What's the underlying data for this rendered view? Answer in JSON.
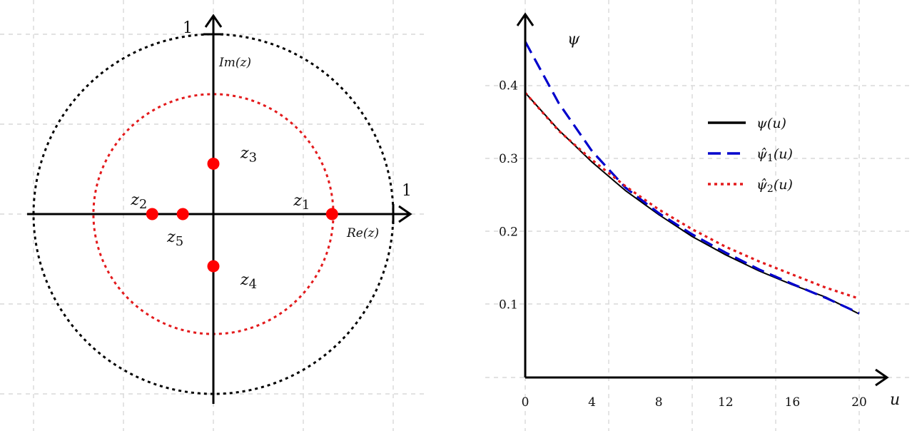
{
  "chart_data": [
    {
      "type": "scatter",
      "subtype": "complex-plane",
      "xlabel": "Re(z)",
      "ylabel": "Im(z)",
      "xlim": [
        -1,
        1
      ],
      "ylim": [
        -1,
        1
      ],
      "grid": true,
      "axis_end_labels": {
        "real": "1",
        "imag": "1"
      },
      "circles": [
        {
          "radius": 1.0,
          "color": "#000000",
          "style": "dotted"
        },
        {
          "radius": 0.667,
          "color": "#e31a1c",
          "style": "dotted"
        }
      ],
      "points": [
        {
          "label": "z1",
          "re": 0.66,
          "im": 0.0
        },
        {
          "label": "z2",
          "re": -0.34,
          "im": 0.0
        },
        {
          "label": "z3",
          "re": 0.0,
          "im": 0.28
        },
        {
          "label": "z4",
          "re": 0.0,
          "im": -0.29
        },
        {
          "label": "z5",
          "re": -0.17,
          "im": 0.0
        }
      ],
      "point_color": "#ff0000"
    },
    {
      "type": "line",
      "ylabel": "ψ",
      "xlabel": "u",
      "xlim": [
        0,
        21
      ],
      "ylim": [
        0,
        0.48
      ],
      "xticks": [
        "0",
        "4",
        "8",
        "12",
        "16",
        "20"
      ],
      "yticks": [
        "0.1",
        "0.2",
        "0.3",
        "0.4"
      ],
      "grid": true,
      "legend_position": "right",
      "x": [
        0,
        2,
        4,
        6,
        8,
        10,
        12,
        14,
        16,
        18,
        20
      ],
      "series": [
        {
          "name": "ψ(u)",
          "legend_main": "ψ",
          "legend_sub": "",
          "color": "#000000",
          "style": "solid",
          "values": [
            0.39,
            0.339,
            0.295,
            0.256,
            0.223,
            0.193,
            0.168,
            0.146,
            0.127,
            0.11,
            0.087
          ]
        },
        {
          "name": "ψ̂1(u)",
          "legend_main": "ψ̂",
          "legend_sub": "1",
          "color": "#0000cc",
          "style": "dashed",
          "values": [
            0.46,
            0.376,
            0.31,
            0.26,
            0.225,
            0.196,
            0.171,
            0.148,
            0.128,
            0.109,
            0.088
          ]
        },
        {
          "name": "ψ̂2(u)",
          "legend_main": "ψ̂",
          "legend_sub": "2",
          "color": "#e31a1c",
          "style": "dotted",
          "values": [
            0.39,
            0.338,
            0.298,
            0.262,
            0.23,
            0.203,
            0.179,
            0.159,
            0.141,
            0.123,
            0.108
          ]
        }
      ]
    }
  ]
}
